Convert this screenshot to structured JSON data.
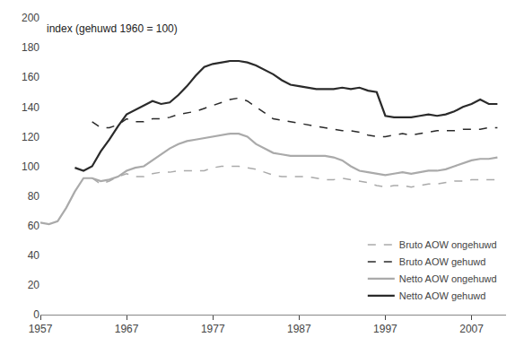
{
  "chart_data": {
    "type": "line",
    "annotations": [
      "index (gehuwd 1960 = 100)"
    ],
    "x": [
      1957,
      1958,
      1959,
      1960,
      1961,
      1962,
      1963,
      1964,
      1965,
      1966,
      1967,
      1968,
      1969,
      1970,
      1971,
      1972,
      1973,
      1974,
      1975,
      1976,
      1977,
      1978,
      1979,
      1980,
      1981,
      1982,
      1983,
      1984,
      1985,
      1986,
      1987,
      1988,
      1989,
      1990,
      1991,
      1992,
      1993,
      1994,
      1995,
      1996,
      1997,
      1998,
      1999,
      2000,
      2001,
      2002,
      2003,
      2004,
      2005,
      2006,
      2007,
      2008,
      2009,
      2010
    ],
    "series": [
      {
        "name": "Bruto AOW ongehuwd",
        "color": "#aaaaaa",
        "line_style": "dashed",
        "values": [
          null,
          null,
          null,
          null,
          null,
          null,
          92,
          88,
          90,
          93,
          95,
          93,
          93,
          95,
          96,
          96,
          97,
          97,
          97,
          97,
          99,
          100,
          100,
          100,
          99,
          98,
          96,
          94,
          93,
          93,
          93,
          93,
          92,
          91,
          91,
          92,
          91,
          90,
          89,
          87,
          86,
          87,
          87,
          86,
          87,
          88,
          88,
          89,
          90,
          90,
          91,
          91,
          91,
          91
        ]
      },
      {
        "name": "Bruto AOW gehuwd",
        "color": "#2a2a2a",
        "line_style": "dashed",
        "values": [
          null,
          null,
          null,
          null,
          null,
          null,
          130,
          126,
          126,
          128,
          132,
          130,
          130,
          132,
          132,
          133,
          135,
          136,
          137,
          139,
          141,
          143,
          145,
          146,
          144,
          140,
          136,
          132,
          131,
          130,
          129,
          128,
          127,
          126,
          125,
          124,
          124,
          123,
          121,
          120,
          120,
          121,
          122,
          121,
          122,
          123,
          124,
          124,
          124,
          125,
          125,
          125,
          126,
          126
        ]
      },
      {
        "name": "Netto AOW ongehuwd",
        "color": "#aaaaaa",
        "line_style": "solid",
        "values": [
          62,
          61,
          63,
          72,
          83,
          92,
          92,
          90,
          91,
          93,
          97,
          99,
          100,
          104,
          108,
          112,
          115,
          117,
          118,
          119,
          120,
          121,
          122,
          122,
          120,
          115,
          112,
          109,
          108,
          107,
          107,
          107,
          107,
          107,
          106,
          104,
          100,
          97,
          96,
          95,
          94,
          95,
          96,
          95,
          96,
          97,
          97,
          98,
          100,
          102,
          104,
          105,
          105,
          106
        ]
      },
      {
        "name": "Netto AOW gehuwd",
        "color": "#2a2a2a",
        "line_style": "solid",
        "values": [
          null,
          null,
          null,
          null,
          99,
          97,
          100,
          110,
          118,
          127,
          135,
          138,
          141,
          144,
          142,
          143,
          148,
          154,
          161,
          167,
          169,
          170,
          171,
          171,
          170,
          168,
          165,
          162,
          158,
          155,
          154,
          153,
          152,
          152,
          152,
          153,
          152,
          153,
          151,
          150,
          134,
          133,
          133,
          133,
          134,
          135,
          134,
          135,
          137,
          140,
          142,
          145,
          142,
          142
        ]
      }
    ],
    "xlim": [
      1957,
      2011
    ],
    "xticks": [
      1957,
      1967,
      1977,
      1987,
      1997,
      2007
    ],
    "ylim": [
      0,
      200
    ],
    "yticks": [
      0,
      20,
      40,
      60,
      80,
      100,
      120,
      140,
      160,
      180,
      200
    ],
    "grid": false,
    "legend": "lower right"
  }
}
